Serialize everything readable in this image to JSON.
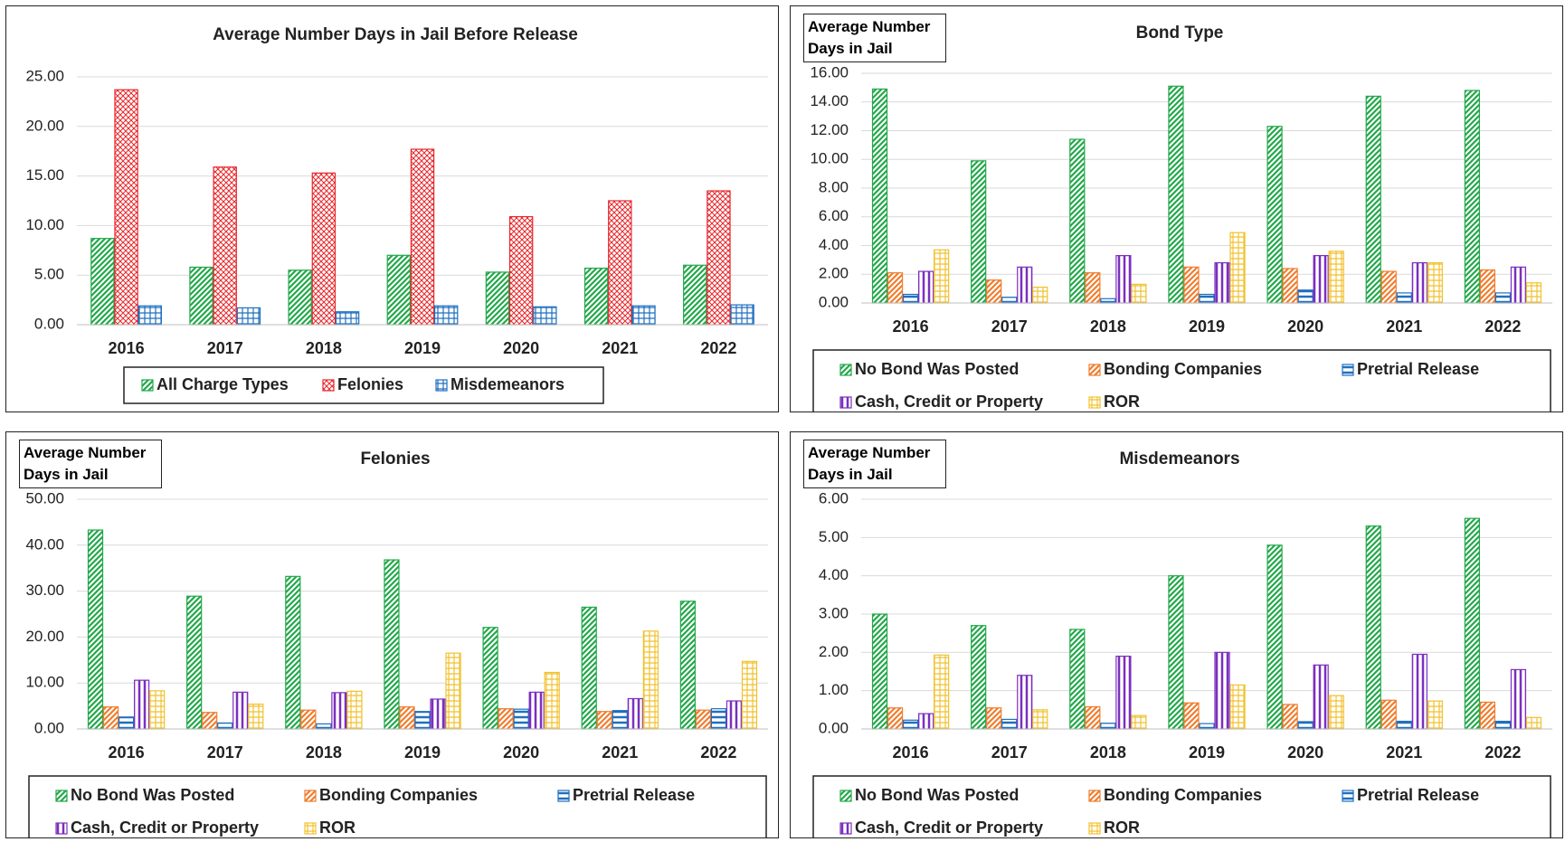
{
  "chart_data": [
    {
      "type": "bar",
      "title": "Average Number Days in Jail Before Release",
      "categories": [
        "2016",
        "2017",
        "2018",
        "2019",
        "2020",
        "2021",
        "2022"
      ],
      "series": [
        {
          "name": "All Charge Types",
          "color": "#22a84a",
          "pattern": "diagonal",
          "values": [
            8.7,
            5.8,
            5.5,
            7.0,
            5.3,
            5.7,
            6.0
          ]
        },
        {
          "name": "Felonies",
          "color": "#e8262a",
          "pattern": "crosshatch",
          "values": [
            23.7,
            15.9,
            15.3,
            17.7,
            10.9,
            12.5,
            13.5
          ]
        },
        {
          "name": "Misdemeanors",
          "color": "#1f6fc0",
          "pattern": "grid",
          "values": [
            1.9,
            1.7,
            1.3,
            1.9,
            1.8,
            1.9,
            2.0
          ]
        }
      ],
      "ylim": [
        0,
        25
      ],
      "yticks": [
        {
          "value": 0,
          "label": "0.00"
        },
        {
          "value": 5,
          "label": "5.00"
        },
        {
          "value": 10,
          "label": "10.00"
        },
        {
          "value": 15,
          "label": "15.00"
        },
        {
          "value": 20,
          "label": "20.00"
        },
        {
          "value": 25,
          "label": "25.00"
        }
      ],
      "grid": true,
      "legend": "bottom"
    },
    {
      "type": "bar",
      "title": "Bond Type",
      "y_label": "Average Number Days in Jail",
      "categories": [
        "2016",
        "2017",
        "2018",
        "2019",
        "2020",
        "2021",
        "2022"
      ],
      "series": [
        {
          "name": "No Bond Was Posted",
          "color": "#22a84a",
          "pattern": "diagonal",
          "values": [
            14.9,
            9.9,
            11.4,
            15.1,
            12.3,
            14.4,
            14.8
          ]
        },
        {
          "name": "Bonding Companies",
          "color": "#f07d2e",
          "pattern": "diagonal",
          "values": [
            2.1,
            1.6,
            2.1,
            2.5,
            2.4,
            2.2,
            2.3
          ]
        },
        {
          "name": "Pretrial Release",
          "color": "#1f6fc0",
          "pattern": "horizontal",
          "values": [
            0.6,
            0.4,
            0.3,
            0.6,
            0.9,
            0.7,
            0.7
          ]
        },
        {
          "name": "Cash, Credit or Property",
          "color": "#7b2fbf",
          "pattern": "vertical",
          "values": [
            2.2,
            2.5,
            3.3,
            2.8,
            3.3,
            2.8,
            2.5
          ]
        },
        {
          "name": "ROR",
          "color": "#f2c12e",
          "pattern": "grid",
          "values": [
            3.7,
            1.1,
            1.3,
            4.9,
            3.6,
            2.8,
            1.4
          ]
        }
      ],
      "ylim": [
        0,
        16
      ],
      "yticks": [
        {
          "value": 0,
          "label": "0.00"
        },
        {
          "value": 2,
          "label": "2.00"
        },
        {
          "value": 4,
          "label": "4.00"
        },
        {
          "value": 6,
          "label": "6.00"
        },
        {
          "value": 8,
          "label": "8.00"
        },
        {
          "value": 10,
          "label": "10.00"
        },
        {
          "value": 12,
          "label": "12.00"
        },
        {
          "value": 14,
          "label": "14.00"
        },
        {
          "value": 16,
          "label": "16.00"
        }
      ],
      "grid": true,
      "legend": "bottom"
    },
    {
      "type": "bar",
      "title": "Felonies",
      "y_label": "Average Number Days in Jail",
      "categories": [
        "2016",
        "2017",
        "2018",
        "2019",
        "2020",
        "2021",
        "2022"
      ],
      "series": [
        {
          "name": "No Bond Was Posted",
          "color": "#22a84a",
          "pattern": "diagonal",
          "values": [
            43.3,
            28.9,
            33.2,
            36.8,
            22.1,
            26.5,
            27.8
          ]
        },
        {
          "name": "Bonding Companies",
          "color": "#f07d2e",
          "pattern": "diagonal",
          "values": [
            4.8,
            3.6,
            4.1,
            4.8,
            4.4,
            3.8,
            4.1
          ]
        },
        {
          "name": "Pretrial Release",
          "color": "#1f6fc0",
          "pattern": "horizontal",
          "values": [
            2.6,
            1.3,
            1.1,
            3.8,
            4.3,
            4.0,
            4.4
          ]
        },
        {
          "name": "Cash, Credit or Property",
          "color": "#7b2fbf",
          "pattern": "vertical",
          "values": [
            10.6,
            8.0,
            7.9,
            6.5,
            8.0,
            6.6,
            6.1
          ]
        },
        {
          "name": "ROR",
          "color": "#f2c12e",
          "pattern": "grid",
          "values": [
            8.3,
            5.4,
            8.2,
            16.5,
            12.3,
            21.3,
            14.7
          ]
        }
      ],
      "ylim": [
        0,
        50
      ],
      "yticks": [
        {
          "value": 0,
          "label": "0.00"
        },
        {
          "value": 10,
          "label": "10.00"
        },
        {
          "value": 20,
          "label": "20.00"
        },
        {
          "value": 30,
          "label": "30.00"
        },
        {
          "value": 40,
          "label": "40.00"
        },
        {
          "value": 50,
          "label": "50.00"
        }
      ],
      "grid": true,
      "legend": "bottom"
    },
    {
      "type": "bar",
      "title": "Misdemeanors",
      "y_label": "Average Number Days in Jail",
      "categories": [
        "2016",
        "2017",
        "2018",
        "2019",
        "2020",
        "2021",
        "2022"
      ],
      "series": [
        {
          "name": "No Bond Was Posted",
          "color": "#22a84a",
          "pattern": "diagonal",
          "values": [
            3.0,
            2.7,
            2.6,
            4.0,
            4.8,
            5.3,
            5.5
          ]
        },
        {
          "name": "Bonding Companies",
          "color": "#f07d2e",
          "pattern": "diagonal",
          "values": [
            0.55,
            0.55,
            0.58,
            0.68,
            0.64,
            0.75,
            0.7
          ]
        },
        {
          "name": "Pretrial Release",
          "color": "#1f6fc0",
          "pattern": "horizontal",
          "values": [
            0.23,
            0.25,
            0.15,
            0.14,
            0.19,
            0.2,
            0.2
          ]
        },
        {
          "name": "Cash, Credit or Property",
          "color": "#7b2fbf",
          "pattern": "vertical",
          "values": [
            0.4,
            1.4,
            1.9,
            2.0,
            1.67,
            1.95,
            1.55
          ]
        },
        {
          "name": "ROR",
          "color": "#f2c12e",
          "pattern": "grid",
          "values": [
            1.93,
            0.5,
            0.35,
            1.15,
            0.87,
            0.73,
            0.3
          ]
        }
      ],
      "ylim": [
        0,
        6
      ],
      "yticks": [
        {
          "value": 0,
          "label": "0.00"
        },
        {
          "value": 1,
          "label": "1.00"
        },
        {
          "value": 2,
          "label": "2.00"
        },
        {
          "value": 3,
          "label": "3.00"
        },
        {
          "value": 4,
          "label": "4.00"
        },
        {
          "value": 5,
          "label": "5.00"
        },
        {
          "value": 6,
          "label": "6.00"
        }
      ],
      "grid": true,
      "legend": "bottom"
    }
  ]
}
